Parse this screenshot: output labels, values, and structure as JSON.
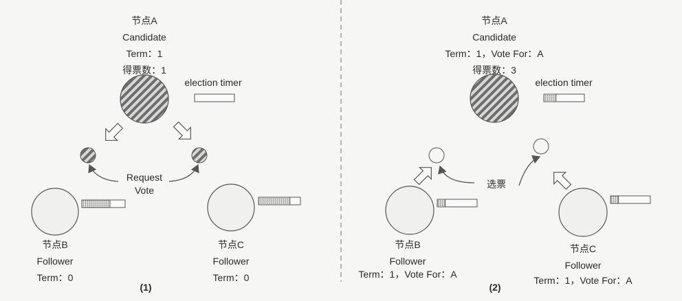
{
  "panel1": {
    "nodeA": {
      "name": "节点A",
      "role": "Candidate",
      "term": "Term：1",
      "votes": "得票数：1"
    },
    "timer_label": "election timer",
    "request_line1": "Request",
    "request_line2": "Vote",
    "nodeB": {
      "name": "节点B",
      "role": "Follower",
      "term": "Term：0"
    },
    "nodeC": {
      "name": "节点C",
      "role": "Follower",
      "term": "Term：0"
    },
    "caption": "(1)",
    "timerB_fill": 0.65,
    "timerC_fill": 0.75,
    "timerA_fill": 0
  },
  "panel2": {
    "nodeA": {
      "name": "节点A",
      "role": "Candidate",
      "term": "Term：1，Vote For：A",
      "votes": "得票数：3"
    },
    "timer_label": "election timer",
    "vote_label": "选票",
    "nodeB": {
      "name": "节点B",
      "role": "Follower",
      "term": "Term：1，Vote For：A"
    },
    "nodeC": {
      "name": "节点C",
      "role": "Follower",
      "term": "Term：1，Vote For：A"
    },
    "caption": "(2)",
    "timerA_fill": 0.3,
    "timerB_fill": 0.2,
    "timerC_fill": 0.2
  },
  "colors": {
    "hatch": "#6d6d6d",
    "circle_fill": "#f0f0ee",
    "stroke": "#555555",
    "divider": "#888888"
  }
}
